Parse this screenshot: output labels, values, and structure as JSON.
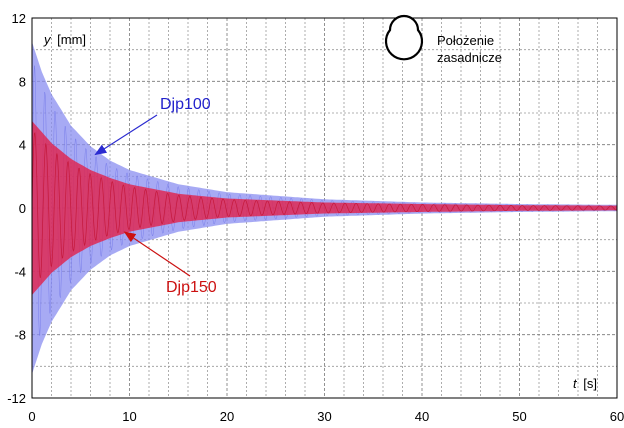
{
  "chart_data": {
    "type": "line",
    "xlabel_var": "t",
    "xlabel_unit": "[s]",
    "ylabel_var": "y",
    "ylabel_unit": "[mm]",
    "xlim": [
      0,
      60
    ],
    "ylim": [
      -12,
      12
    ],
    "x_ticks": [
      0,
      10,
      20,
      30,
      40,
      50,
      60
    ],
    "y_ticks": [
      -12,
      -8,
      -4,
      0,
      4,
      8,
      12
    ],
    "grid": true,
    "annotation": "Położenie zasadnicze",
    "annotation_lines": [
      "Położenie",
      "zasadnicze"
    ],
    "series": [
      {
        "name": "Djp100",
        "color": "#3333cc",
        "fill_color": "#8a8ef0",
        "envelope_x": [
          0,
          1,
          2,
          4,
          6,
          8,
          10,
          15,
          20,
          30,
          40,
          50,
          60
        ],
        "envelope_y": [
          10.5,
          8.6,
          7.2,
          5.2,
          3.9,
          3.0,
          2.4,
          1.5,
          1.0,
          0.55,
          0.35,
          0.25,
          0.2
        ]
      },
      {
        "name": "Djp150",
        "color": "#cc1111",
        "fill_color": "#e2204a",
        "envelope_x": [
          0,
          1,
          2,
          4,
          6,
          8,
          10,
          15,
          20,
          30,
          40,
          50,
          60
        ],
        "envelope_y": [
          5.5,
          4.8,
          4.1,
          3.1,
          2.4,
          1.9,
          1.5,
          0.9,
          0.6,
          0.35,
          0.25,
          0.18,
          0.15
        ]
      }
    ]
  }
}
